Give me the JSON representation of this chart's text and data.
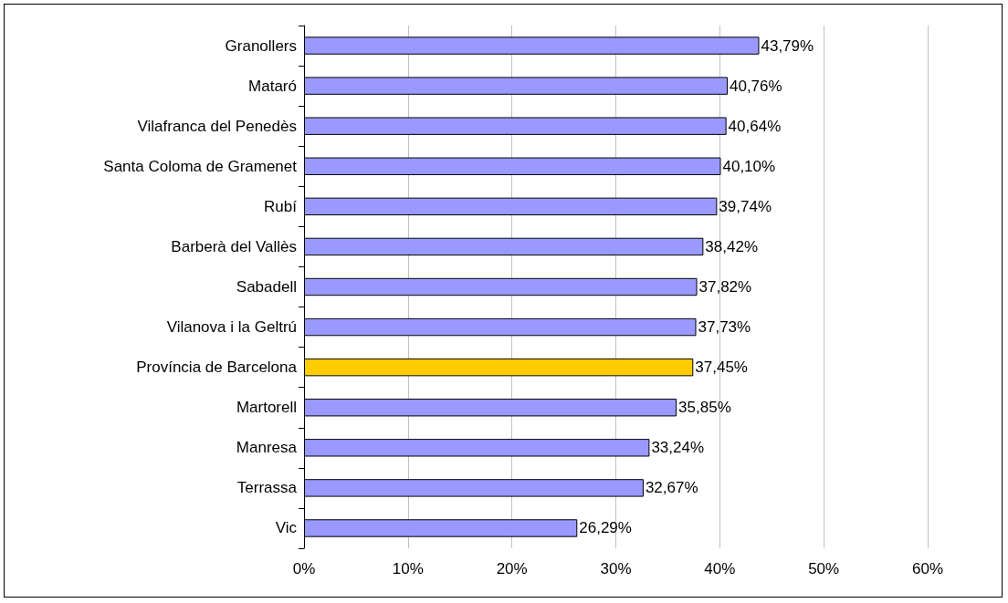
{
  "chart_data": {
    "type": "bar",
    "orientation": "horizontal",
    "categories": [
      "Granollers",
      "Mataró",
      "Vilafranca del Penedès",
      "Santa Coloma de Gramenet",
      "Rubí",
      "Barberà del Vallès",
      "Sabadell",
      "Vilanova i la Geltrú",
      "Província de Barcelona",
      "Martorell",
      "Manresa",
      "Terrassa",
      "Vic"
    ],
    "values": [
      43.79,
      40.76,
      40.64,
      40.1,
      39.74,
      38.42,
      37.82,
      37.73,
      37.45,
      35.85,
      33.24,
      32.67,
      26.29
    ],
    "colors": [
      "#9999ff",
      "#9999ff",
      "#9999ff",
      "#9999ff",
      "#9999ff",
      "#9999ff",
      "#9999ff",
      "#9999ff",
      "#ffcc00",
      "#9999ff",
      "#9999ff",
      "#9999ff",
      "#9999ff"
    ],
    "value_labels": [
      "43,79%",
      "40,76%",
      "40,64%",
      "40,10%",
      "39,74%",
      "38,42%",
      "37,82%",
      "37,73%",
      "37,45%",
      "35,85%",
      "33,24%",
      "32,67%",
      "26,29%"
    ],
    "xlim": [
      0,
      60
    ],
    "xticks": [
      {
        "value": 0,
        "label": "0%"
      },
      {
        "value": 10,
        "label": "10%"
      },
      {
        "value": 20,
        "label": "20%"
      },
      {
        "value": 30,
        "label": "30%"
      },
      {
        "value": 40,
        "label": "40%"
      },
      {
        "value": 50,
        "label": "50%"
      },
      {
        "value": 60,
        "label": "60%"
      }
    ],
    "grid": "x"
  }
}
